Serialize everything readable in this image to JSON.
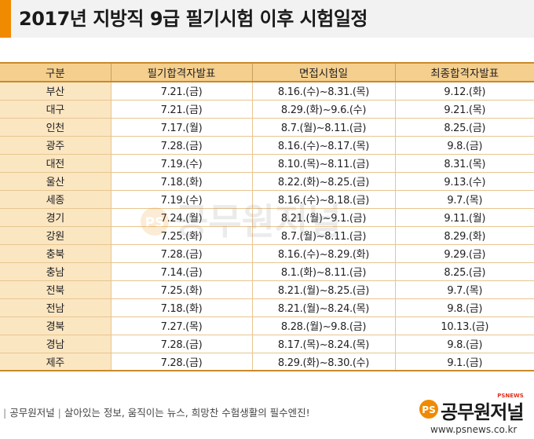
{
  "title": "2017년 지방직 9급 필기시험 이후 시험일정",
  "colors": {
    "accent": "#f08a00",
    "header_bg": "#f5cf8e",
    "first_col_bg": "#fbe6c2",
    "border": "#c98a2a"
  },
  "table": {
    "headers": [
      "구분",
      "필기합격자발표",
      "면접시험일",
      "최종합격자발표"
    ],
    "rows": [
      [
        "부산",
        "7.21.(금)",
        "8.16.(수)~8.31.(목)",
        "9.12.(화)"
      ],
      [
        "대구",
        "7.21.(금)",
        "8.29.(화)~9.6.(수)",
        "9.21.(목)"
      ],
      [
        "인천",
        "7.17.(월)",
        "8.7.(월)~8.11.(금)",
        "8.25.(금)"
      ],
      [
        "광주",
        "7.28.(금)",
        "8.16.(수)~8.17.(목)",
        "9.8.(금)"
      ],
      [
        "대전",
        "7.19.(수)",
        "8.10.(목)~8.11.(금)",
        "8.31.(목)"
      ],
      [
        "울산",
        "7.18.(화)",
        "8.22.(화)~8.25.(금)",
        "9.13.(수)"
      ],
      [
        "세종",
        "7.19.(수)",
        "8.16.(수)~8.18.(금)",
        "9.7.(목)"
      ],
      [
        "경기",
        "7.24.(월)",
        "8.21.(월)~9.1.(금)",
        "9.11.(월)"
      ],
      [
        "강원",
        "7.25.(화)",
        "8.7.(월)~8.11.(금)",
        "8.29.(화)"
      ],
      [
        "충북",
        "7.28.(금)",
        "8.16.(수)~8.29.(화)",
        "9.29.(금)"
      ],
      [
        "충남",
        "7.14.(금)",
        "8.1.(화)~8.11.(금)",
        "8.25.(금)"
      ],
      [
        "전북",
        "7.25.(화)",
        "8.21.(월)~8.25.(금)",
        "9.7.(목)"
      ],
      [
        "전남",
        "7.18.(화)",
        "8.21.(월)~8.24.(목)",
        "9.8.(금)"
      ],
      [
        "경북",
        "7.27.(목)",
        "8.28.(월)~9.8.(금)",
        "10.13.(금)"
      ],
      [
        "경남",
        "7.28.(금)",
        "8.17.(목)~8.24.(목)",
        "9.8.(금)"
      ],
      [
        "제주",
        "7.28.(금)",
        "8.29.(화)~8.30.(수)",
        "9.1.(금)"
      ]
    ]
  },
  "footer": {
    "brand": "공무원저널",
    "slogan": "살아있는 정보, 움직이는 뉴스, 희망찬 수험생활의 필수엔진!",
    "logo_ps": "PS",
    "logo_text": "공무원저널",
    "logo_small": "PSNEWS",
    "url": "www.psnews.co.kr"
  },
  "watermark": {
    "text": "공무원저널",
    "ps": "PS"
  }
}
